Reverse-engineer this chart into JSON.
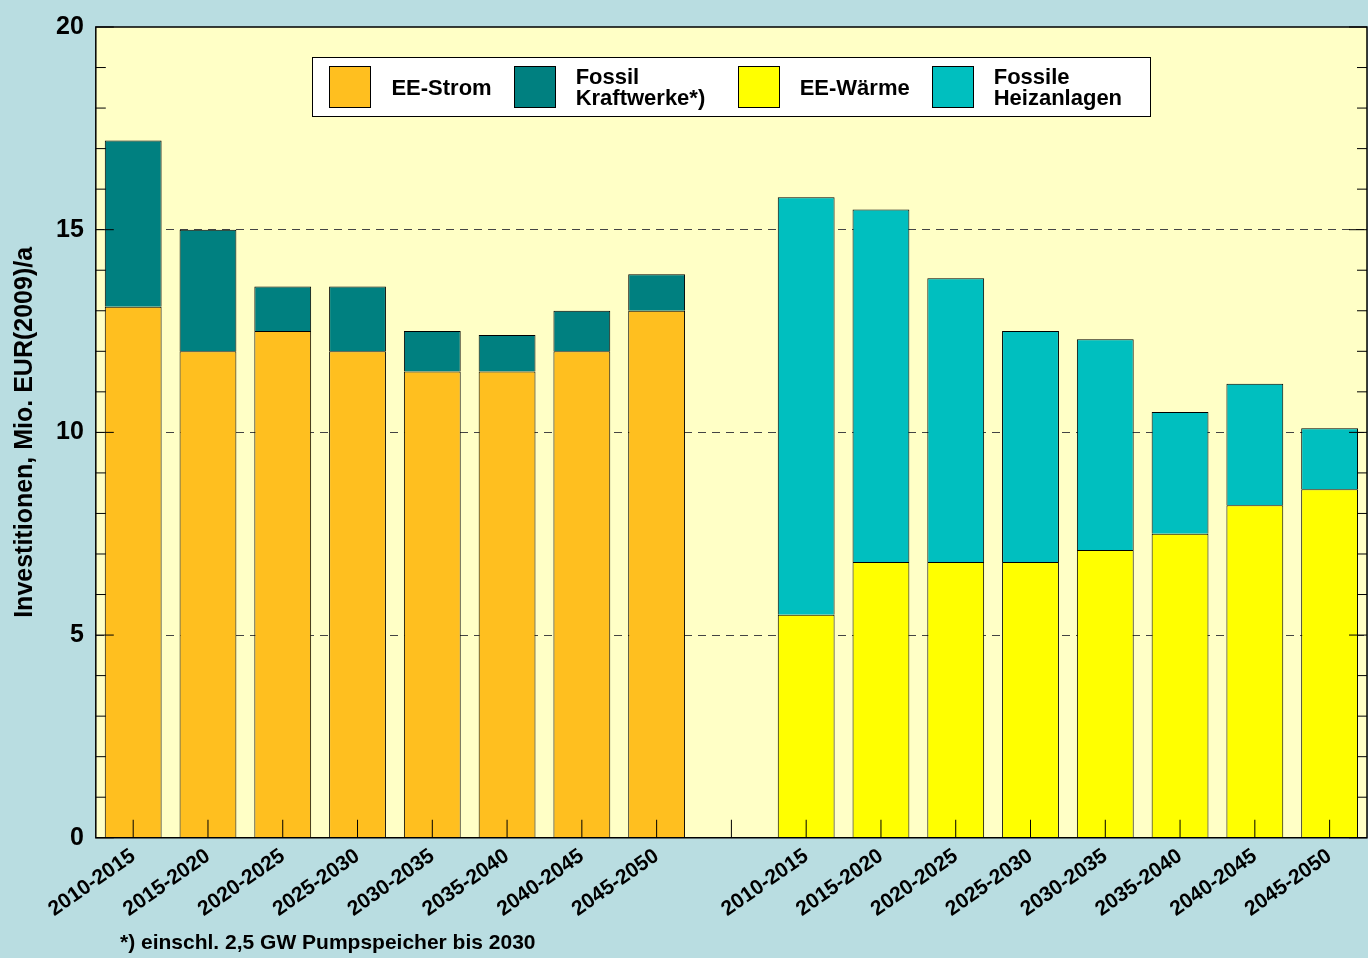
{
  "chart_data": {
    "type": "bar",
    "stacked": true,
    "ylabel": "Investitionen, Mio. EUR(2009)/a",
    "categories": [
      "2010-2015",
      "2015-2020",
      "2020-2025",
      "2025-2030",
      "2030-2035",
      "2035-2040",
      "2040-2045",
      "2045-2050",
      null,
      "2010-2015",
      "2015-2020",
      "2020-2025",
      "2025-2030",
      "2030-2035",
      "2035-2040",
      "2040-2045",
      "2045-2050"
    ],
    "series": [
      {
        "name": "EE-Strom",
        "color": "#ffbf1f",
        "values": [
          13.1,
          12.0,
          12.5,
          12.0,
          11.5,
          11.5,
          12.0,
          13.0,
          null,
          null,
          null,
          null,
          null,
          null,
          null,
          null,
          null
        ]
      },
      {
        "name": "Fossil Kraftwerke*)",
        "color": "#008080",
        "values": [
          4.1,
          3.0,
          1.1,
          1.6,
          1.0,
          0.9,
          1.0,
          0.9,
          null,
          null,
          null,
          null,
          null,
          null,
          null,
          null,
          null
        ]
      },
      {
        "name": "EE-Wärme",
        "color": "#ffff00",
        "values": [
          null,
          null,
          null,
          null,
          null,
          null,
          null,
          null,
          null,
          5.5,
          6.8,
          6.8,
          6.8,
          7.1,
          7.5,
          8.2,
          8.6
        ]
      },
      {
        "name": "Fossile Heizanlagen",
        "color": "#00bfbf",
        "values": [
          null,
          null,
          null,
          null,
          null,
          null,
          null,
          null,
          null,
          10.3,
          8.7,
          7.0,
          5.7,
          5.2,
          3.0,
          3.0,
          1.5
        ]
      }
    ],
    "ylim": [
      0,
      20
    ],
    "yticks": [
      0,
      {
        "value": 1,
        "label": null
      },
      {
        "value": 2,
        "label": null
      },
      {
        "value": 3,
        "label": null
      },
      {
        "value": 4,
        "label": null
      },
      5,
      {
        "value": 6,
        "label": null
      },
      {
        "value": 7,
        "label": null
      },
      {
        "value": 8,
        "label": null
      },
      {
        "value": 9,
        "label": null
      },
      10,
      {
        "value": 11,
        "label": null
      },
      {
        "value": 12,
        "label": null
      },
      {
        "value": 13,
        "label": null
      },
      {
        "value": 14,
        "label": null
      },
      15,
      {
        "value": 16,
        "label": null
      },
      {
        "value": 17,
        "label": null
      },
      {
        "value": 18,
        "label": null
      },
      {
        "value": 19,
        "label": null
      },
      20
    ],
    "grid": "y",
    "legend": "top",
    "annotations": [
      "*) einschl. 2,5 GW Pumpspeicher bis 2030"
    ]
  }
}
